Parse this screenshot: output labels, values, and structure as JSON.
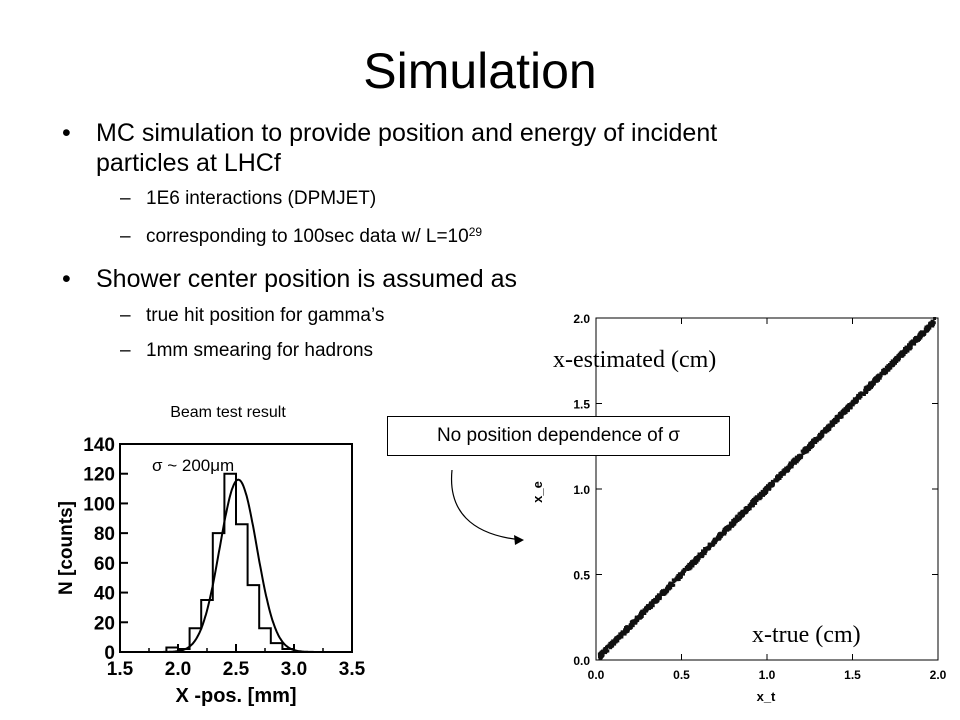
{
  "title": "Simulation",
  "bullets": [
    {
      "text": "MC simulation to provide position and energy of incident particles at LHCf",
      "sub": [
        {
          "text": "1E6 interactions (DPMJET)"
        },
        {
          "text": "corresponding to 100sec data w/ L=10",
          "sup": "29"
        }
      ]
    },
    {
      "text": "Shower center position is assumed as",
      "sub": [
        {
          "text": "true hit position for gamma’s"
        },
        {
          "text": "1mm smearing for hadrons"
        }
      ]
    }
  ],
  "callout": "No position dependence of σ",
  "chart_data": [
    {
      "type": "histogram",
      "caption": "Beam test result",
      "annotation": "σ ~ 200μm",
      "xlabel": "X -pos.   [mm]",
      "ylabel": "N  [counts]",
      "xlim": [
        1.5,
        3.5
      ],
      "ylim": [
        0,
        140
      ],
      "xticks": [
        "1.5",
        "2.0",
        "2.5",
        "3.0",
        "3.5"
      ],
      "yticks": [
        "0",
        "20",
        "40",
        "60",
        "80",
        "100",
        "120",
        "140"
      ],
      "bin_width": 0.1,
      "bin_edges_start": 1.9,
      "counts": [
        3,
        2,
        16,
        35,
        80,
        120,
        86,
        45,
        16,
        6,
        2
      ],
      "fit": {
        "mean": 2.52,
        "sigma": 0.16,
        "amplitude": 116
      }
    },
    {
      "type": "scatter",
      "label_y": "x-estimated (cm)",
      "label_x": "x-true (cm)",
      "xlabel": "x_t",
      "ylabel": "x_e",
      "xlim": [
        0,
        2
      ],
      "ylim": [
        0,
        2
      ],
      "xticks": [
        "0.0",
        "0.5",
        "1.0",
        "1.5",
        "2.0"
      ],
      "yticks": [
        "0.0",
        "0.5",
        "1.0",
        "1.5",
        "2.0"
      ],
      "relation": "y = x"
    }
  ],
  "colors": {
    "text": "#000000",
    "background": "#ffffff",
    "points": "#111111"
  }
}
